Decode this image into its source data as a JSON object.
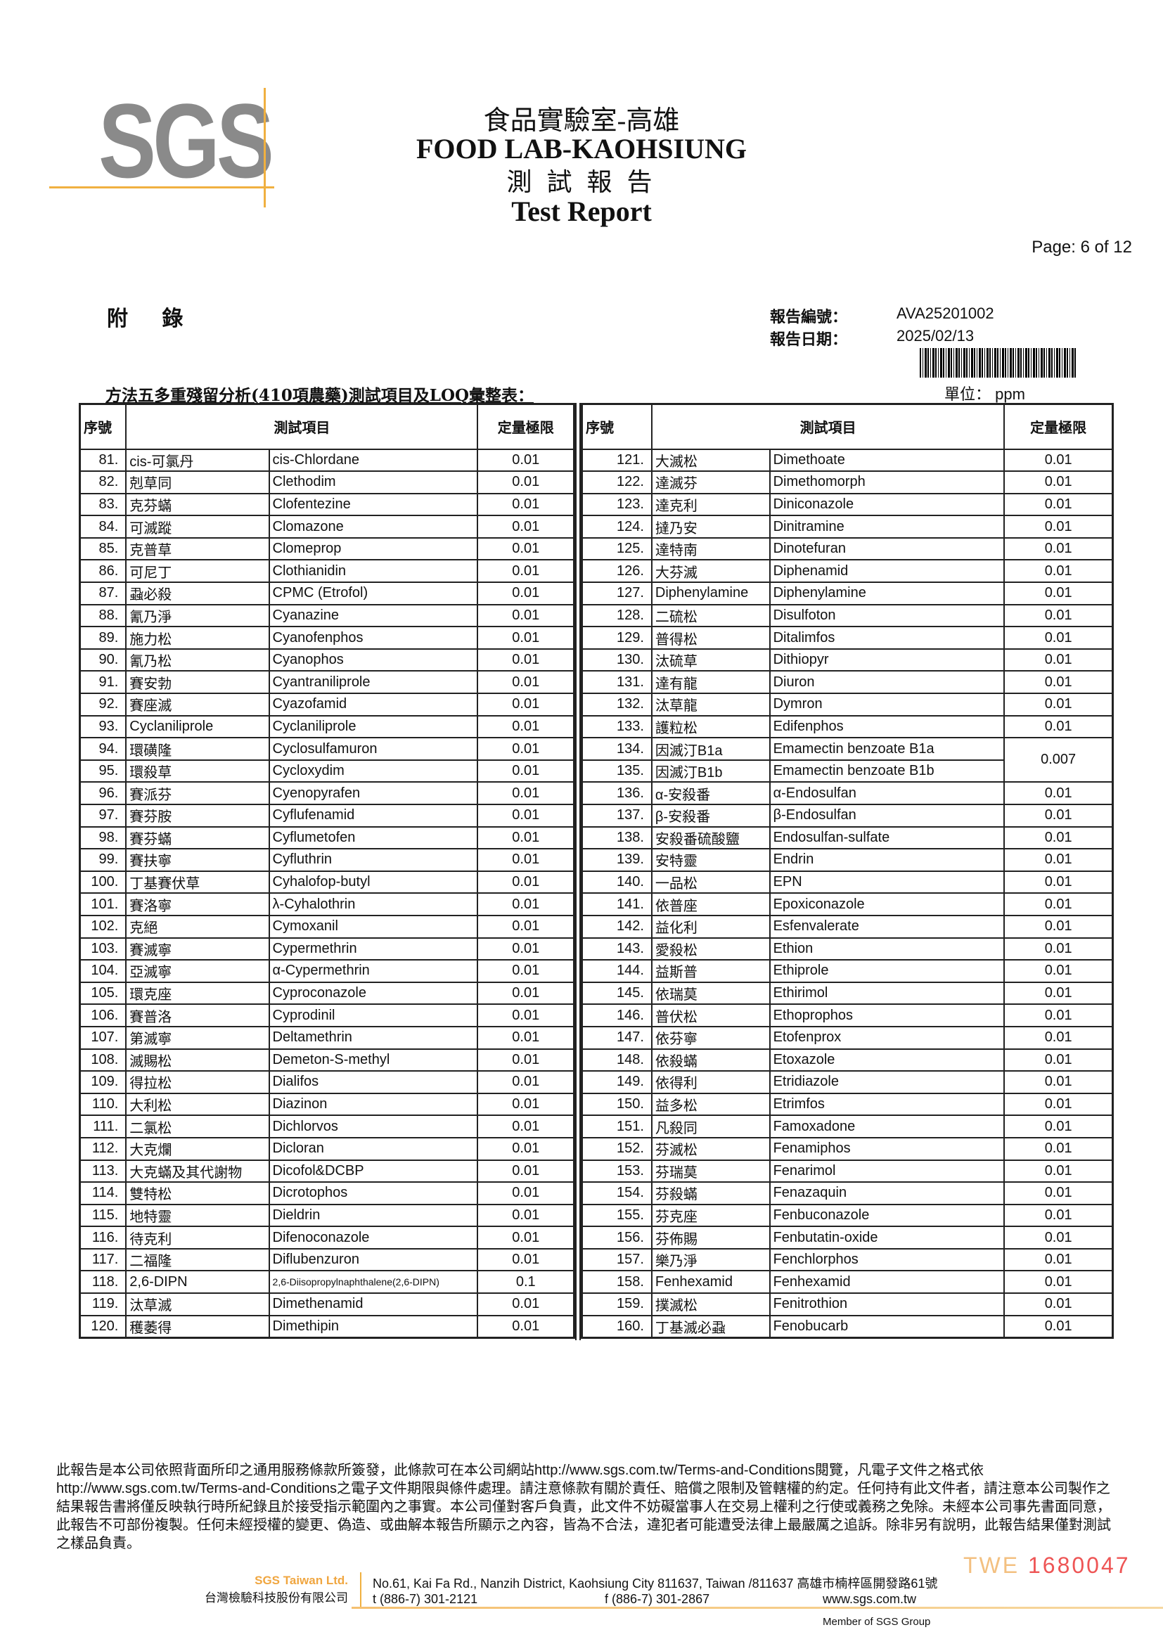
{
  "header": {
    "logo": "SGS",
    "lab_zh": "食品實驗室-高雄",
    "lab_en": "FOOD LAB-KAOHSIUNG",
    "report_zh": "測 試 報 告",
    "report_en": "Test Report",
    "page": "Page: 6 of 12"
  },
  "meta": {
    "appendix": "附 錄",
    "report_no_label": "報告編號：",
    "report_no": "AVA25201002",
    "report_date_label": "報告日期：",
    "report_date": "2025/02/13"
  },
  "table": {
    "title": "方法五多重殘留分析(410項農藥)測試項目及LOQ彙整表：",
    "unit_label": "單位：",
    "unit": "ppm",
    "headers": {
      "seq": "序號",
      "item": "測試項目",
      "loq": "定量極限"
    },
    "left": [
      [
        "81.",
        "cis-可氯丹",
        "cis-Chlordane",
        "0.01"
      ],
      [
        "82.",
        "剋草同",
        "Clethodim",
        "0.01"
      ],
      [
        "83.",
        "克芬蟎",
        "Clofentezine",
        "0.01"
      ],
      [
        "84.",
        "可滅蹤",
        "Clomazone",
        "0.01"
      ],
      [
        "85.",
        "克普草",
        "Clomeprop",
        "0.01"
      ],
      [
        "86.",
        "可尼丁",
        "Clothianidin",
        "0.01"
      ],
      [
        "87.",
        "蝨必殺",
        "CPMC (Etrofol)",
        "0.01"
      ],
      [
        "88.",
        "氰乃淨",
        "Cyanazine",
        "0.01"
      ],
      [
        "89.",
        "施力松",
        "Cyanofenphos",
        "0.01"
      ],
      [
        "90.",
        "氰乃松",
        "Cyanophos",
        "0.01"
      ],
      [
        "91.",
        "賽安勃",
        "Cyantraniliprole",
        "0.01"
      ],
      [
        "92.",
        "賽座滅",
        "Cyazofamid",
        "0.01"
      ],
      [
        "93.",
        "Cyclaniliprole",
        "Cyclaniliprole",
        "0.01"
      ],
      [
        "94.",
        "環磺隆",
        "Cyclosulfamuron",
        "0.01"
      ],
      [
        "95.",
        "環殺草",
        "Cycloxydim",
        "0.01"
      ],
      [
        "96.",
        "賽派芬",
        "Cyenopyrafen",
        "0.01"
      ],
      [
        "97.",
        "賽芬胺",
        "Cyflufenamid",
        "0.01"
      ],
      [
        "98.",
        "賽芬蟎",
        "Cyflumetofen",
        "0.01"
      ],
      [
        "99.",
        "賽扶寧",
        "Cyfluthrin",
        "0.01"
      ],
      [
        "100.",
        "丁基賽伏草",
        "Cyhalofop-butyl",
        "0.01"
      ],
      [
        "101.",
        "賽洛寧",
        "λ-Cyhalothrin",
        "0.01"
      ],
      [
        "102.",
        "克絕",
        "Cymoxanil",
        "0.01"
      ],
      [
        "103.",
        "賽滅寧",
        "Cypermethrin",
        "0.01"
      ],
      [
        "104.",
        "亞滅寧",
        "α-Cypermethrin",
        "0.01"
      ],
      [
        "105.",
        "環克座",
        "Cyproconazole",
        "0.01"
      ],
      [
        "106.",
        "賽普洛",
        "Cyprodinil",
        "0.01"
      ],
      [
        "107.",
        "第滅寧",
        "Deltamethrin",
        "0.01"
      ],
      [
        "108.",
        "滅賜松",
        "Demeton-S-methyl",
        "0.01"
      ],
      [
        "109.",
        "得拉松",
        "Dialifos",
        "0.01"
      ],
      [
        "110.",
        "大利松",
        "Diazinon",
        "0.01"
      ],
      [
        "111.",
        "二氯松",
        "Dichlorvos",
        "0.01"
      ],
      [
        "112.",
        "大克爛",
        "Dicloran",
        "0.01"
      ],
      [
        "113.",
        "大克蟎及其代謝物",
        "Dicofol&DCBP",
        "0.01"
      ],
      [
        "114.",
        "雙特松",
        "Dicrotophos",
        "0.01"
      ],
      [
        "115.",
        "地特靈",
        "Dieldrin",
        "0.01"
      ],
      [
        "116.",
        "待克利",
        "Difenoconazole",
        "0.01"
      ],
      [
        "117.",
        "二福隆",
        "Diflubenzuron",
        "0.01"
      ],
      [
        "118.",
        "2,6-DIPN",
        "2,6-Diisopropylnaphthalene(2,6-DIPN)",
        "0.1"
      ],
      [
        "119.",
        "汰草滅",
        "Dimethenamid",
        "0.01"
      ],
      [
        "120.",
        "穫萎得",
        "Dimethipin",
        "0.01"
      ]
    ],
    "right": [
      [
        "121.",
        "大滅松",
        "Dimethoate",
        "0.01"
      ],
      [
        "122.",
        "達滅芬",
        "Dimethomorph",
        "0.01"
      ],
      [
        "123.",
        "達克利",
        "Diniconazole",
        "0.01"
      ],
      [
        "124.",
        "撻乃安",
        "Dinitramine",
        "0.01"
      ],
      [
        "125.",
        "達特南",
        "Dinotefuran",
        "0.01"
      ],
      [
        "126.",
        "大芬滅",
        "Diphenamid",
        "0.01"
      ],
      [
        "127.",
        "Diphenylamine",
        "Diphenylamine",
        "0.01"
      ],
      [
        "128.",
        "二硫松",
        "Disulfoton",
        "0.01"
      ],
      [
        "129.",
        "普得松",
        "Ditalimfos",
        "0.01"
      ],
      [
        "130.",
        "汰硫草",
        "Dithiopyr",
        "0.01"
      ],
      [
        "131.",
        "達有龍",
        "Diuron",
        "0.01"
      ],
      [
        "132.",
        "汰草龍",
        "Dymron",
        "0.01"
      ],
      [
        "133.",
        "護粒松",
        "Edifenphos",
        "0.01"
      ],
      [
        "134.",
        "因滅汀B1a",
        "Emamectin benzoate B1a",
        "0.007"
      ],
      [
        "135.",
        "因滅汀B1b",
        "Emamectin benzoate B1b",
        ""
      ],
      [
        "136.",
        "α-安殺番",
        "α-Endosulfan",
        "0.01"
      ],
      [
        "137.",
        "β-安殺番",
        "β-Endosulfan",
        "0.01"
      ],
      [
        "138.",
        "安殺番硫酸鹽",
        "Endosulfan-sulfate",
        "0.01"
      ],
      [
        "139.",
        "安特靈",
        "Endrin",
        "0.01"
      ],
      [
        "140.",
        "一品松",
        "EPN",
        "0.01"
      ],
      [
        "141.",
        "依普座",
        "Epoxiconazole",
        "0.01"
      ],
      [
        "142.",
        "益化利",
        "Esfenvalerate",
        "0.01"
      ],
      [
        "143.",
        "愛殺松",
        "Ethion",
        "0.01"
      ],
      [
        "144.",
        "益斯普",
        "Ethiprole",
        "0.01"
      ],
      [
        "145.",
        "依瑞莫",
        "Ethirimol",
        "0.01"
      ],
      [
        "146.",
        "普伏松",
        "Ethoprophos",
        "0.01"
      ],
      [
        "147.",
        "依芬寧",
        "Etofenprox",
        "0.01"
      ],
      [
        "148.",
        "依殺蟎",
        "Etoxazole",
        "0.01"
      ],
      [
        "149.",
        "依得利",
        "Etridiazole",
        "0.01"
      ],
      [
        "150.",
        "益多松",
        "Etrimfos",
        "0.01"
      ],
      [
        "151.",
        "凡殺同",
        "Famoxadone",
        "0.01"
      ],
      [
        "152.",
        "芬滅松",
        "Fenamiphos",
        "0.01"
      ],
      [
        "153.",
        "芬瑞莫",
        "Fenarimol",
        "0.01"
      ],
      [
        "154.",
        "芬殺蟎",
        "Fenazaquin",
        "0.01"
      ],
      [
        "155.",
        "芬克座",
        "Fenbuconazole",
        "0.01"
      ],
      [
        "156.",
        "芬佈賜",
        "Fenbutatin-oxide",
        "0.01"
      ],
      [
        "157.",
        "樂乃淨",
        "Fenchlorphos",
        "0.01"
      ],
      [
        "158.",
        "Fenhexamid",
        "Fenhexamid",
        "0.01"
      ],
      [
        "159.",
        "撲滅松",
        "Fenitrothion",
        "0.01"
      ],
      [
        "160.",
        "丁基滅必蝨",
        "Fenobucarb",
        "0.01"
      ]
    ]
  },
  "footer": {
    "disclaimer_1": "此報告是本公司依照背面所印之通用服務條款所簽發，此條款可在本公司網站",
    "link": "http://www.sgs.com.tw/Terms-and-Conditions",
    "disclaimer_2": "閱覽，凡電子文件之格式依",
    "disclaimer_3": "之電子文件期限與條件處理。請注意條款有關於責任、賠償之限制及管轄權的約定。任何持有此文件者，請注意本公司製作之結果報告書將僅反映執行時所紀錄且於接受指示範圍內之事實。本公司僅對客戶負責，此文件不妨礙當事人在交易上權利之行使或義務之免除。未經本公司事先書面同意，此報告不可部份複製。任何未經授權的變更、偽造、或曲解本報告所顯示之內容，皆為不合法，違犯者可能遭受法律上最嚴厲之追訴。除非另有說明，此報告結果僅對測試之樣品負責。",
    "serial_prefix": "TWE",
    "serial": "1680047",
    "company_en": "SGS Taiwan Ltd.",
    "company_zh": "台灣檢驗科技股份有限公司",
    "address": "No.61, Kai Fa Rd., Nanzih District, Kaohsiung City 811637, Taiwan /811637 高雄市楠梓區開發路61號",
    "tel": "t (886-7) 301-2121",
    "fax": "f (886-7) 301-2867",
    "web": "www.sgs.com.tw",
    "member": "Member of SGS Group"
  }
}
